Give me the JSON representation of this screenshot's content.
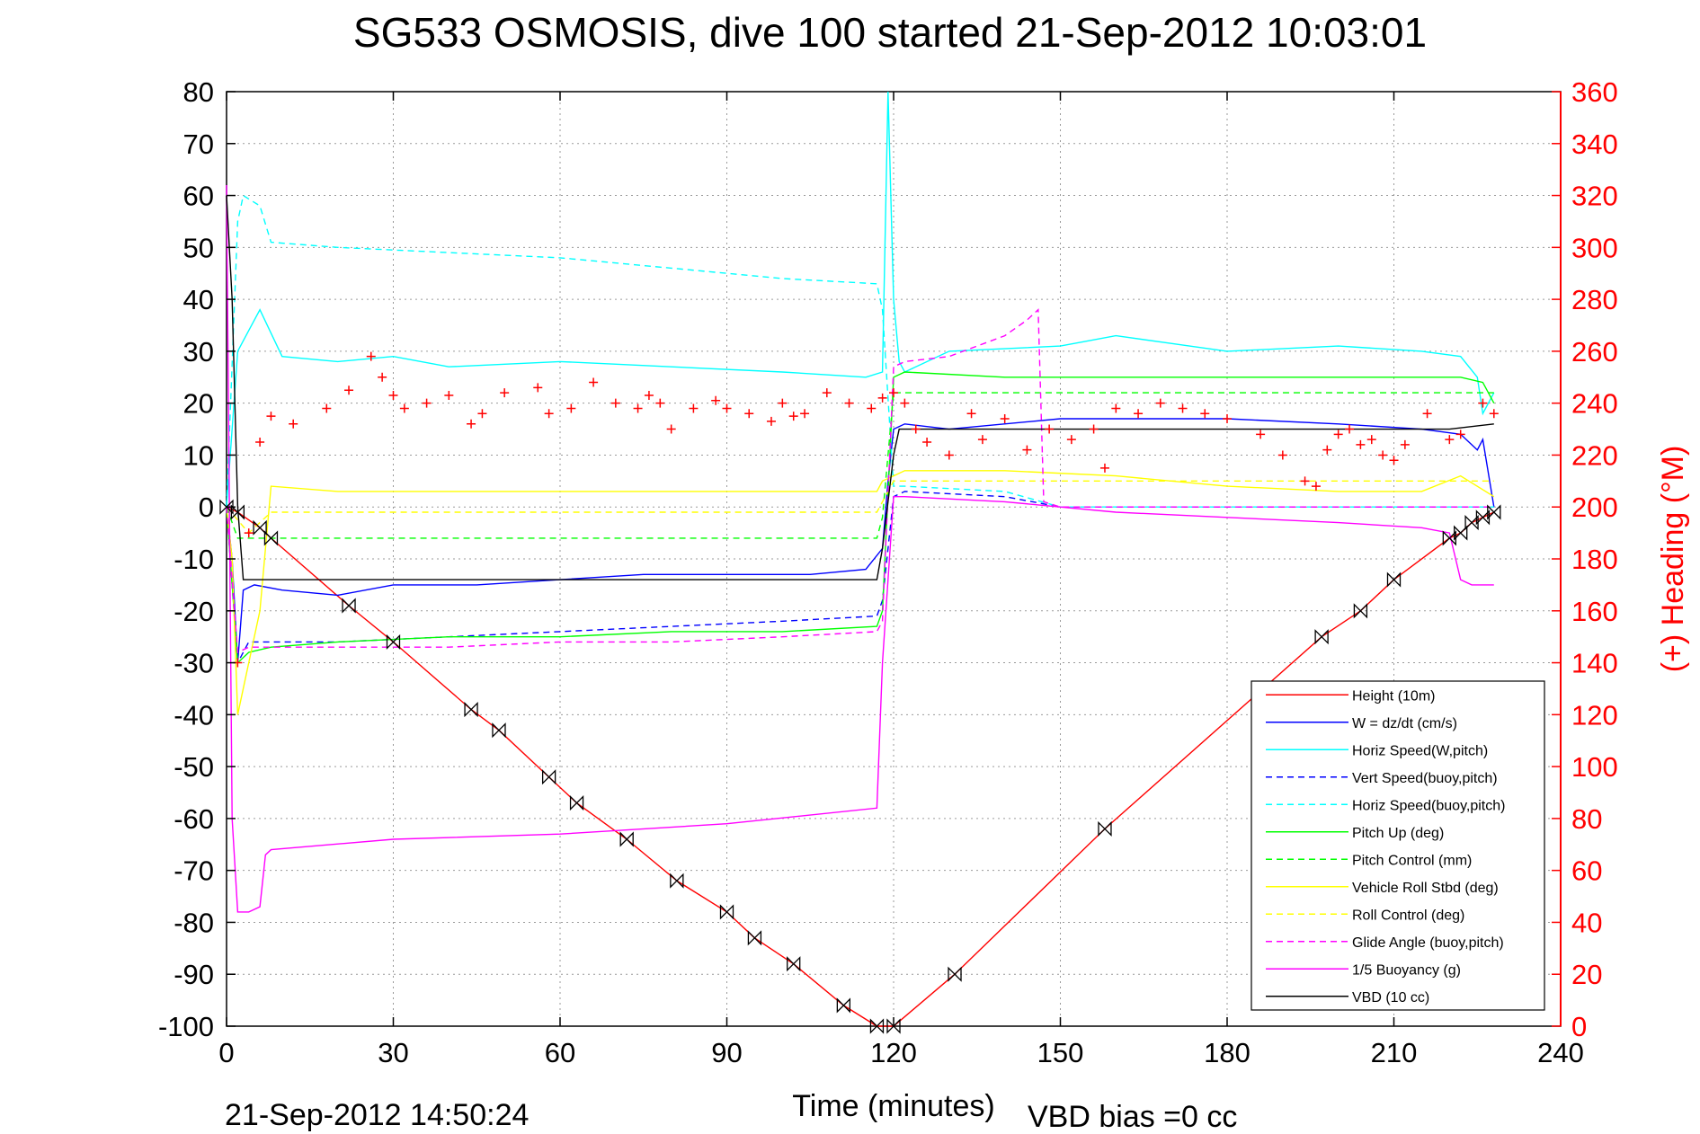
{
  "chart_data": {
    "type": "line",
    "title": "SG533 OSMOSIS, dive 100 started 21-Sep-2012 10:03:01",
    "xlabel": "Time (minutes)",
    "ylabel": "",
    "y2label": "(+) Heading (°M)",
    "xlim": [
      0,
      240
    ],
    "ylim": [
      -100,
      80
    ],
    "y2lim": [
      0,
      360
    ],
    "xticks": [
      "0",
      "30",
      "60",
      "90",
      "120",
      "150",
      "180",
      "210",
      "240"
    ],
    "yticks": [
      "80",
      "70",
      "60",
      "50",
      "40",
      "30",
      "20",
      "10",
      "0",
      "-10",
      "-20",
      "-30",
      "-40",
      "-50",
      "-60",
      "-70",
      "-80",
      "-90",
      "-100"
    ],
    "y2ticks": [
      "360",
      "340",
      "320",
      "300",
      "280",
      "260",
      "240",
      "220",
      "200",
      "180",
      "160",
      "140",
      "120",
      "100",
      "80",
      "60",
      "40",
      "20",
      "0"
    ],
    "grid": true,
    "legend_position": "bottom-right",
    "footer_left": "21-Sep-2012 14:50:24",
    "footer_right": "VBD bias =0 cc",
    "colors": {
      "height": "#ff0000",
      "w": "#0000ff",
      "horiz_speed": "#00ffff",
      "vert_speed_buoy": "#0000ff",
      "horiz_speed_buoy": "#00ffff",
      "pitch_up": "#00ff00",
      "pitch_control": "#00ff00",
      "vehicle_roll": "#ffff00",
      "roll_control": "#ffff00",
      "glide_angle": "#ff00ff",
      "buoyancy": "#ff00ff",
      "vbd": "#000000",
      "heading": "#ff0000"
    },
    "series": [
      {
        "name": "Height (10m)",
        "key": "height",
        "style": "solid",
        "x": [
          0,
          2,
          6,
          8,
          22,
          30,
          44,
          49,
          58,
          63,
          72,
          81,
          90,
          95,
          102,
          111,
          117,
          120,
          131,
          158,
          197,
          204,
          210,
          220,
          222,
          224,
          226,
          228
        ],
        "y": [
          0,
          -1,
          -4,
          -6,
          -19,
          -26,
          -39,
          -43,
          -52,
          -57,
          -64,
          -72,
          -78,
          -83,
          -88,
          -96,
          -100,
          -100,
          -90,
          -62,
          -25,
          -20,
          -14,
          -6,
          -5,
          -3,
          -2,
          -1
        ]
      },
      {
        "name": "W = dz/dt (cm/s)",
        "key": "w",
        "style": "solid",
        "x": [
          0,
          1,
          2,
          3,
          5,
          10,
          20,
          30,
          45,
          60,
          75,
          90,
          105,
          115,
          118,
          119,
          120,
          122,
          130,
          150,
          180,
          200,
          215,
          222,
          225,
          226,
          228
        ],
        "y": [
          0,
          -10,
          -30,
          -16,
          -15,
          -16,
          -17,
          -15,
          -15,
          -14,
          -13,
          -13,
          -13,
          -12,
          -8,
          5,
          15,
          16,
          15,
          17,
          17,
          16,
          15,
          14,
          11,
          13,
          0
        ]
      },
      {
        "name": "Horiz Speed(W,pitch)",
        "key": "horiz_speed",
        "style": "solid",
        "x": [
          0,
          2,
          4,
          6,
          10,
          20,
          30,
          40,
          60,
          80,
          100,
          115,
          118,
          119,
          120,
          121,
          122,
          130,
          150,
          160,
          180,
          200,
          215,
          222,
          225,
          226,
          228
        ],
        "y": [
          0,
          30,
          34,
          38,
          29,
          28,
          29,
          27,
          28,
          27,
          26,
          25,
          26,
          80,
          40,
          28,
          26,
          30,
          31,
          33,
          30,
          31,
          30,
          29,
          25,
          18,
          22
        ]
      },
      {
        "name": "Vert Speed(buoy,pitch)",
        "key": "vert_speed_buoy",
        "style": "dashed",
        "x": [
          0,
          2,
          4,
          8,
          20,
          40,
          60,
          80,
          100,
          117,
          118,
          120,
          122,
          140,
          150,
          228
        ],
        "y": [
          0,
          -30,
          -26,
          -26,
          -26,
          -25,
          -24,
          -23,
          -22,
          -21,
          -18,
          2,
          3,
          2,
          0,
          0
        ]
      },
      {
        "name": "Horiz Speed(buoy,pitch)",
        "key": "horiz_speed_buoy",
        "style": "dashed",
        "x": [
          0,
          2,
          3,
          6,
          8,
          20,
          40,
          60,
          80,
          100,
          117,
          118,
          120,
          122,
          140,
          150,
          228
        ],
        "y": [
          0,
          55,
          60,
          58,
          51,
          50,
          49,
          48,
          46,
          44,
          43,
          38,
          4,
          4,
          3,
          0,
          0
        ]
      },
      {
        "name": "Pitch Up (deg)",
        "key": "pitch_up",
        "style": "solid",
        "x": [
          0,
          2,
          4,
          8,
          20,
          40,
          60,
          80,
          100,
          117,
          118,
          120,
          122,
          140,
          160,
          180,
          200,
          215,
          222,
          226,
          228
        ],
        "y": [
          0,
          -30,
          -28,
          -27,
          -26,
          -25,
          -25,
          -24,
          -24,
          -23,
          -20,
          25,
          26,
          25,
          25,
          25,
          25,
          25,
          25,
          24,
          20
        ]
      },
      {
        "name": "Pitch Control (mm)",
        "key": "pitch_control",
        "style": "dashed",
        "x": [
          0,
          2,
          6,
          117,
          118,
          120,
          122,
          228
        ],
        "y": [
          0,
          -6,
          -6,
          -6,
          -2,
          22,
          22,
          22
        ]
      },
      {
        "name": "Vehicle Roll Stbd (deg)",
        "key": "vehicle_roll",
        "style": "solid",
        "x": [
          0,
          1,
          2,
          4,
          6,
          8,
          20,
          40,
          60,
          80,
          100,
          117,
          118,
          120,
          122,
          140,
          160,
          180,
          200,
          215,
          222,
          228
        ],
        "y": [
          0,
          -10,
          -40,
          -30,
          -20,
          4,
          3,
          3,
          3,
          3,
          3,
          3,
          5,
          6,
          7,
          7,
          6,
          4,
          3,
          3,
          6,
          2
        ]
      },
      {
        "name": "Roll Control (deg)",
        "key": "roll_control",
        "style": "dashed",
        "x": [
          0,
          4,
          8,
          117,
          120,
          122,
          228
        ],
        "y": [
          0,
          -5,
          -1,
          -1,
          5,
          5,
          5
        ]
      },
      {
        "name": "Glide Angle (buoy,pitch)",
        "key": "glide_angle",
        "style": "dashed",
        "x": [
          0,
          2,
          4,
          8,
          20,
          40,
          60,
          80,
          100,
          117,
          118,
          120,
          122,
          130,
          140,
          144,
          146,
          147,
          150,
          228
        ],
        "y": [
          0,
          -28,
          -27,
          -27,
          -27,
          -27,
          -26,
          -26,
          -25,
          -24,
          -22,
          27,
          28,
          29,
          33,
          36,
          38,
          1,
          0,
          0
        ]
      },
      {
        "name": "1/5 Buoyancy (g)",
        "key": "buoyancy",
        "style": "solid",
        "x": [
          0,
          1,
          2,
          4,
          6,
          7,
          8,
          30,
          60,
          90,
          117,
          118,
          120,
          122,
          140,
          160,
          180,
          200,
          215,
          220,
          222,
          224,
          228
        ],
        "y": [
          62,
          -60,
          -78,
          -78,
          -77,
          -67,
          -66,
          -64,
          -63,
          -61,
          -58,
          -30,
          2,
          2,
          1,
          -1,
          -2,
          -3,
          -4,
          -5,
          -14,
          -15,
          -15
        ]
      },
      {
        "name": "VBD (10 cc)",
        "key": "vbd",
        "style": "solid",
        "x": [
          0,
          1,
          2,
          3,
          4,
          20,
          60,
          100,
          117,
          118,
          120,
          121,
          122,
          140,
          180,
          220,
          228
        ],
        "y": [
          60,
          40,
          0,
          -14,
          -14,
          -14,
          -14,
          -14,
          -14,
          -8,
          10,
          15,
          15,
          15,
          15,
          15,
          16
        ]
      }
    ],
    "heading": {
      "name": "Heading",
      "key": "heading",
      "axis": "y2",
      "x": [
        2,
        4,
        6,
        8,
        12,
        18,
        22,
        26,
        28,
        30,
        32,
        36,
        40,
        44,
        46,
        50,
        56,
        58,
        62,
        66,
        70,
        74,
        76,
        78,
        80,
        84,
        88,
        90,
        94,
        98,
        100,
        102,
        104,
        108,
        112,
        116,
        118,
        120,
        122,
        124,
        126,
        130,
        134,
        136,
        140,
        144,
        148,
        152,
        156,
        158,
        160,
        164,
        168,
        172,
        176,
        180,
        186,
        190,
        194,
        196,
        198,
        200,
        202,
        204,
        206,
        208,
        210,
        212,
        216,
        220,
        222,
        226,
        228
      ],
      "y": [
        140,
        190,
        225,
        235,
        232,
        238,
        245,
        258,
        250,
        243,
        238,
        240,
        243,
        232,
        236,
        244,
        246,
        236,
        238,
        248,
        240,
        238,
        243,
        240,
        230,
        238,
        241,
        238,
        236,
        233,
        240,
        235,
        236,
        244,
        240,
        238,
        242,
        244,
        240,
        230,
        225,
        220,
        236,
        226,
        234,
        222,
        230,
        226,
        230,
        215,
        238,
        236,
        240,
        238,
        236,
        234,
        228,
        220,
        210,
        208,
        222,
        228,
        230,
        224,
        226,
        220,
        218,
        224,
        236,
        226,
        228,
        240,
        236
      ]
    }
  }
}
